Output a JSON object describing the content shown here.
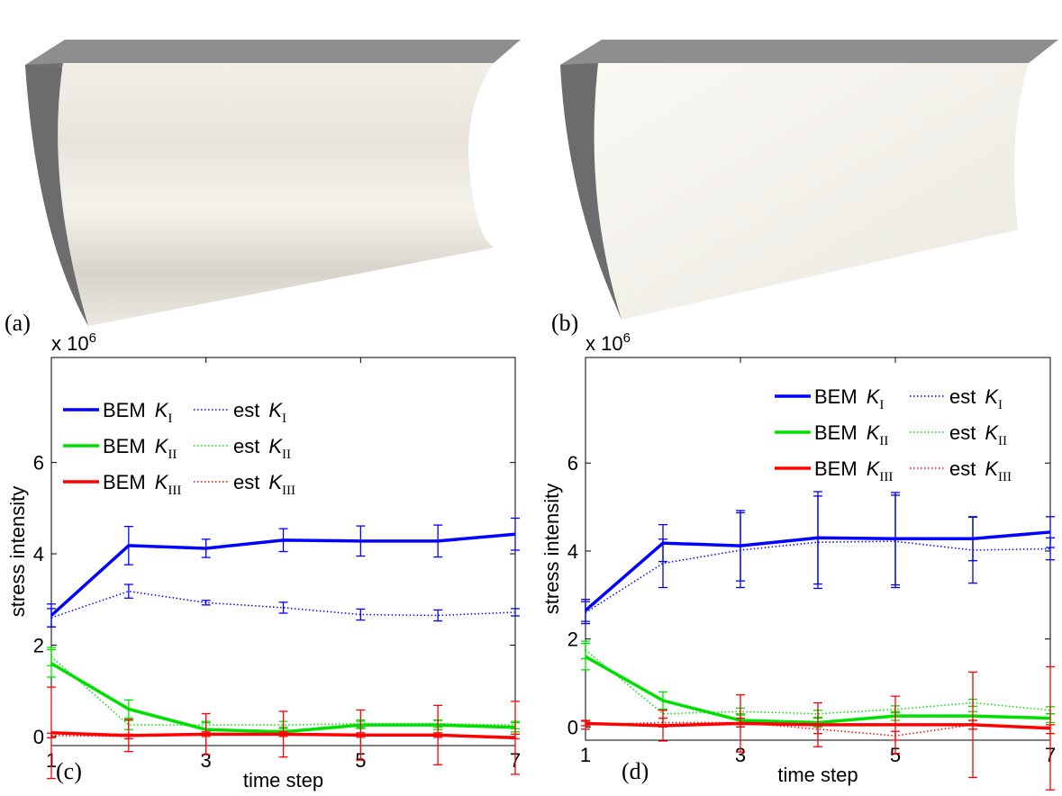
{
  "panel_labels": [
    "(a)",
    "(b)"
  ],
  "chart_data": [
    {
      "type": "line",
      "panel_label": "(c)",
      "y_scale_base": "x 10",
      "y_scale_exp": "6",
      "ylabel": "stress intensity",
      "xlabel": "time step",
      "legend": "upper left",
      "x": [
        1,
        2,
        3,
        4,
        5,
        6,
        7
      ],
      "xlim": [
        1,
        7
      ],
      "xticks": [
        1,
        3,
        5,
        7
      ],
      "ylim": [
        -0.2,
        8.3
      ],
      "yticks": [
        0,
        2,
        4,
        6
      ],
      "series": [
        {
          "name": "BEM",
          "symbol": "K",
          "subscript": "I",
          "style": "solid",
          "color": "#0000ff",
          "values": [
            2.65,
            4.18,
            4.12,
            4.3,
            4.28,
            4.28,
            4.43
          ],
          "errors": [
            0.25,
            0.42,
            0.2,
            0.25,
            0.33,
            0.35,
            0.35
          ]
        },
        {
          "name": "est",
          "symbol": "K",
          "subscript": "I",
          "style": "dotted",
          "color": "#0000ff",
          "values": [
            2.6,
            3.18,
            2.93,
            2.82,
            2.67,
            2.65,
            2.72
          ],
          "errors": [
            0.2,
            0.15,
            0.05,
            0.12,
            0.12,
            0.12,
            0.08
          ]
        },
        {
          "name": "BEM",
          "symbol": "K",
          "subscript": "II",
          "style": "solid",
          "color": "#00e000",
          "values": [
            1.6,
            0.6,
            0.15,
            0.1,
            0.25,
            0.25,
            0.2
          ],
          "errors": [
            0.3,
            0.2,
            0.15,
            0.1,
            0.08,
            0.1,
            0.1
          ]
        },
        {
          "name": "est",
          "symbol": "K",
          "subscript": "II",
          "style": "dotted",
          "color": "#00e000",
          "values": [
            1.75,
            0.25,
            0.25,
            0.25,
            0.28,
            0.28,
            0.25
          ],
          "errors": [
            0.2,
            0.1,
            0.08,
            0.08,
            0.08,
            0.08,
            0.08
          ]
        },
        {
          "name": "BEM",
          "symbol": "K",
          "subscript": "III",
          "style": "solid",
          "color": "#ff0000",
          "values": [
            0.08,
            0.02,
            0.05,
            0.05,
            0.03,
            0.03,
            -0.03
          ],
          "errors": [
            1.0,
            0.35,
            0.45,
            0.5,
            0.55,
            0.65,
            0.8
          ]
        },
        {
          "name": "est",
          "symbol": "K",
          "subscript": "III",
          "style": "dotted",
          "color": "#ff0000",
          "values": [
            0.02,
            0.0,
            0.05,
            0.05,
            0.03,
            0.03,
            0.0
          ],
          "errors": [
            0.05,
            0.05,
            0.05,
            0.05,
            0.05,
            0.05,
            0.05
          ]
        }
      ]
    },
    {
      "type": "line",
      "panel_label": "(d)",
      "y_scale_base": "x 10",
      "y_scale_exp": "6",
      "ylabel": "stress intensity",
      "xlabel": "time step",
      "legend": "upper right",
      "x": [
        1,
        2,
        3,
        4,
        5,
        6,
        7
      ],
      "xlim": [
        1,
        7
      ],
      "xticks": [
        1,
        3,
        5,
        7
      ],
      "ylim": [
        -0.3,
        8.4
      ],
      "yticks": [
        0,
        2,
        4,
        6
      ],
      "series": [
        {
          "name": "BEM",
          "symbol": "K",
          "subscript": "I",
          "style": "solid",
          "color": "#0000ff",
          "values": [
            2.65,
            4.18,
            4.12,
            4.3,
            4.28,
            4.28,
            4.43
          ],
          "errors": [
            0.25,
            0.42,
            0.8,
            1.05,
            1.05,
            0.5,
            0.35
          ]
        },
        {
          "name": "est",
          "symbol": "K",
          "subscript": "I",
          "style": "dotted",
          "color": "#0000ff",
          "values": [
            2.6,
            3.72,
            4.02,
            4.2,
            4.22,
            4.02,
            4.05
          ],
          "errors": [
            0.25,
            0.55,
            0.85,
            1.05,
            1.05,
            0.75,
            0.25
          ]
        },
        {
          "name": "BEM",
          "symbol": "K",
          "subscript": "II",
          "style": "solid",
          "color": "#00e000",
          "values": [
            1.6,
            0.6,
            0.15,
            0.1,
            0.25,
            0.25,
            0.2
          ],
          "errors": [
            0.3,
            0.2,
            0.15,
            0.1,
            0.1,
            0.1,
            0.1
          ]
        },
        {
          "name": "est",
          "symbol": "K",
          "subscript": "II",
          "style": "dotted",
          "color": "#00e000",
          "values": [
            1.75,
            0.3,
            0.35,
            0.3,
            0.4,
            0.55,
            0.38
          ],
          "errors": [
            0.2,
            0.1,
            0.08,
            0.08,
            0.08,
            0.08,
            0.08
          ]
        },
        {
          "name": "BEM",
          "symbol": "K",
          "subscript": "III",
          "style": "solid",
          "color": "#ff0000",
          "values": [
            0.08,
            0.03,
            0.08,
            0.05,
            0.05,
            0.05,
            -0.03
          ],
          "errors": [
            0.05,
            0.35,
            0.65,
            0.5,
            0.65,
            1.2,
            1.4
          ]
        },
        {
          "name": "est",
          "symbol": "K",
          "subscript": "III",
          "style": "dotted",
          "color": "#ff0000",
          "values": [
            0.05,
            0.1,
            0.1,
            -0.05,
            -0.2,
            0.05,
            -0.05
          ],
          "errors": [
            0.1,
            0.1,
            0.1,
            0.1,
            0.1,
            0.1,
            0.1
          ]
        }
      ]
    }
  ]
}
